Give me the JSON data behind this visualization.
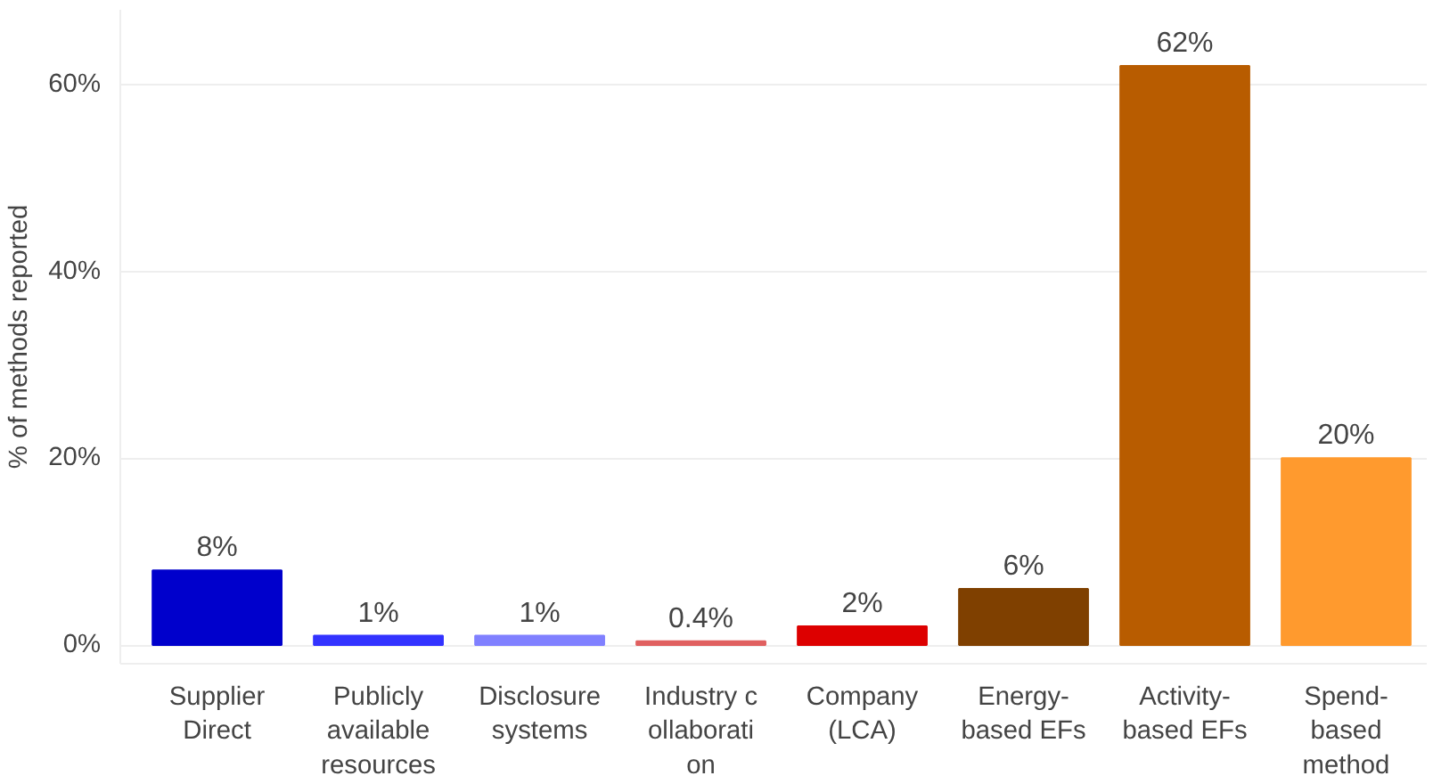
{
  "chart_data": {
    "type": "bar",
    "ylabel": "% of methods reported",
    "categories": [
      "Supplier\nDirect",
      "Publicly\navailable\nresources",
      "Disclosure\nsystems",
      "Industry c\nollaborati\non",
      "Company\n(LCA)",
      "Energy-\nbased EFs",
      "Activity-\nbased EFs",
      "Spend-\nbased\nmethod"
    ],
    "values": [
      8,
      1,
      1,
      0.4,
      2,
      6,
      62,
      20
    ],
    "colors": [
      "#0000cc",
      "#3333ff",
      "#8080ff",
      "#e06060",
      "#dd0000",
      "#7f4000",
      "#b85c00",
      "#ff9a2e"
    ],
    "value_labels": [
      "8%",
      "1%",
      "1%",
      "0.4%",
      "2%",
      "6%",
      "62%",
      "20%"
    ],
    "ylim": [
      -2,
      68
    ],
    "yticks": [
      {
        "value": 0,
        "label": "0%"
      },
      {
        "value": 20,
        "label": "20%"
      },
      {
        "value": 40,
        "label": "40%"
      },
      {
        "value": 60,
        "label": "60%"
      }
    ],
    "grid": "y"
  }
}
